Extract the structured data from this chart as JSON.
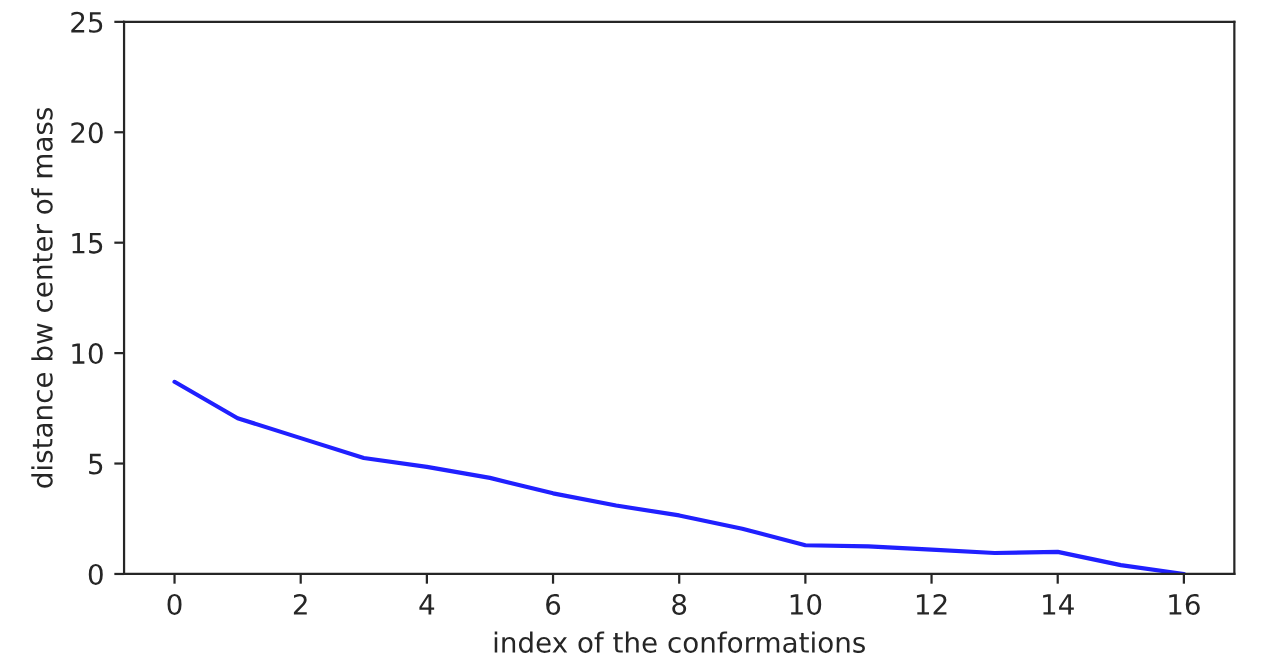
{
  "chart_data": {
    "type": "line",
    "xlabel": "index of the conformations",
    "ylabel": "distance bw center of mass",
    "x": [
      0,
      1,
      2,
      3,
      4,
      5,
      6,
      7,
      8,
      9,
      10,
      11,
      12,
      13,
      14,
      15,
      16
    ],
    "series": [
      {
        "color": "#2020ff",
        "values": [
          8.7,
          7.05,
          6.15,
          5.25,
          4.85,
          4.35,
          3.65,
          3.1,
          2.65,
          2.05,
          1.3,
          1.25,
          1.1,
          0.95,
          1.0,
          0.4,
          0.0
        ]
      }
    ],
    "xlim": [
      -0.8,
      16.8
    ],
    "xticks": [
      0,
      2,
      4,
      6,
      8,
      10,
      12,
      14,
      16
    ],
    "ylim": [
      0,
      25
    ],
    "yticks": [
      0,
      5,
      10,
      15,
      20,
      25
    ],
    "grid": false,
    "legend": false
  }
}
